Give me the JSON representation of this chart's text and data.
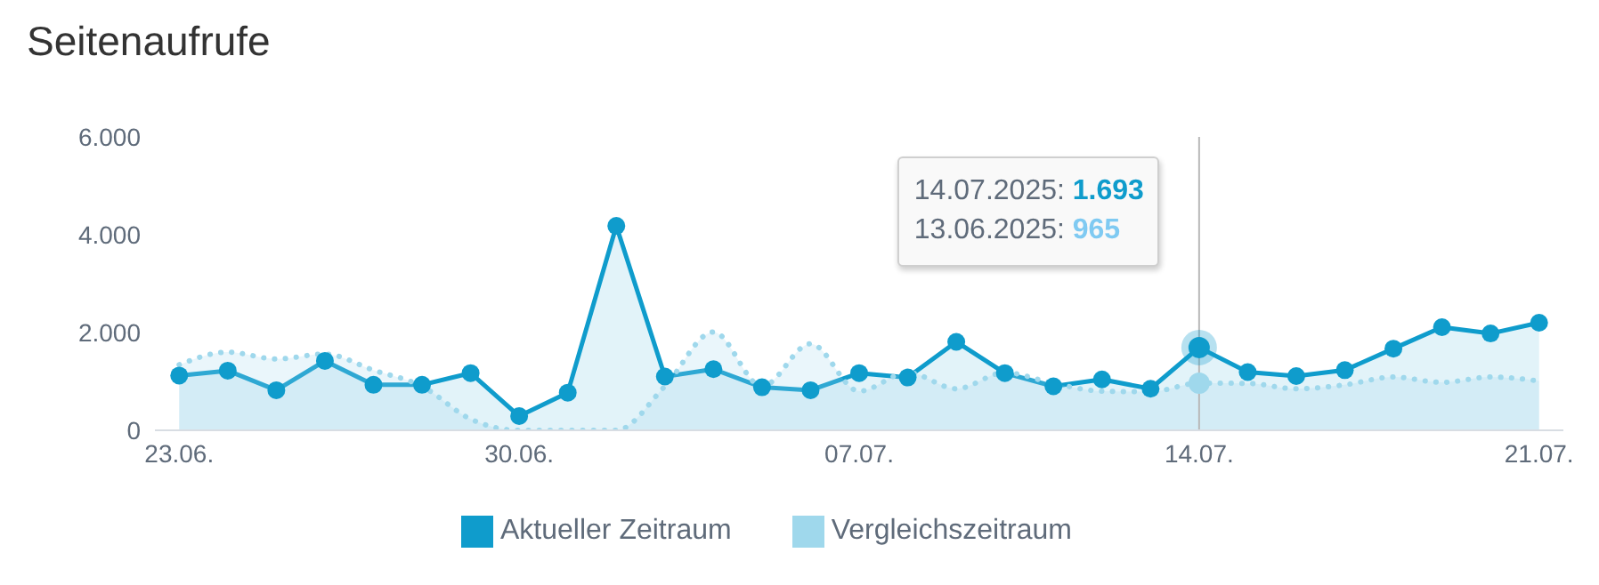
{
  "chart_data": {
    "type": "area",
    "title": "Seitenaufrufe",
    "x": [
      "2025-06-23",
      "2025-06-24",
      "2025-06-25",
      "2025-06-26",
      "2025-06-27",
      "2025-06-28",
      "2025-06-29",
      "2025-06-30",
      "2025-07-01",
      "2025-07-02",
      "2025-07-03",
      "2025-07-04",
      "2025-07-05",
      "2025-07-06",
      "2025-07-07",
      "2025-07-08",
      "2025-07-09",
      "2025-07-10",
      "2025-07-11",
      "2025-07-12",
      "2025-07-13",
      "2025-07-14",
      "2025-07-15",
      "2025-07-16",
      "2025-07-17",
      "2025-07-18",
      "2025-07-19",
      "2025-07-20",
      "2025-07-21"
    ],
    "series": [
      {
        "name": "Aktueller Zeitraum",
        "color": "#0f9ccc",
        "marker": "circle",
        "line_style": "solid",
        "values": [
          1120,
          1220,
          820,
          1420,
          930,
          930,
          1170,
          290,
          770,
          4180,
          1100,
          1250,
          880,
          820,
          1170,
          1080,
          1810,
          1170,
          900,
          1040,
          850,
          1693,
          1190,
          1110,
          1230,
          1670,
          2110,
          1980,
          2200
        ]
      },
      {
        "name": "Vergleichszeitraum",
        "color": "#9fd8ec",
        "marker": "none",
        "line_style": "dotted",
        "values": [
          1340,
          1600,
          1460,
          1560,
          1230,
          900,
          230,
          0,
          0,
          0,
          900,
          2010,
          900,
          1770,
          800,
          1180,
          850,
          1180,
          960,
          800,
          790,
          965,
          960,
          850,
          930,
          1090,
          980,
          1090,
          1010
        ]
      }
    ],
    "xlim": [
      "2025-06-22T12:00",
      "2025-07-21T12:00"
    ],
    "xticks": [
      {
        "value": "2025-06-23",
        "label": "23.06."
      },
      {
        "value": "2025-06-30",
        "label": "30.06."
      },
      {
        "value": "2025-07-07",
        "label": "07.07."
      },
      {
        "value": "2025-07-14",
        "label": "14.07."
      },
      {
        "value": "2025-07-21",
        "label": "21.07."
      }
    ],
    "ylim": [
      0,
      6000
    ],
    "yticks": [
      0,
      {
        "value": 2000,
        "label": "2.000"
      },
      {
        "value": 4000,
        "label": "4.000"
      },
      {
        "value": 6000,
        "label": "6.000"
      }
    ],
    "grid": false,
    "legend": "bottom",
    "ref_lines": [
      {
        "axis": "x",
        "value": "2025-07-14",
        "color": "#b8b8b8"
      }
    ],
    "annotations": [
      "14.07.2025: 1.693",
      "13.06.2025: 965"
    ]
  }
}
